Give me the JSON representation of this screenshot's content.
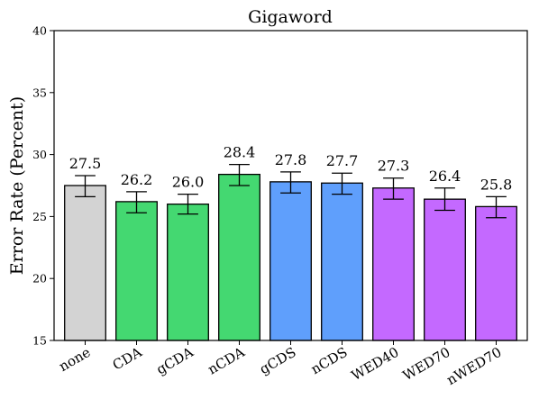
{
  "chart_data": {
    "type": "bar",
    "title": "Gigaword",
    "xlabel": "",
    "ylabel": "Error Rate (Percent)",
    "ylim": [
      15,
      40
    ],
    "yticks": [
      15,
      20,
      25,
      30,
      35,
      40
    ],
    "categories": [
      "none",
      "CDA",
      "gCDA",
      "nCDA",
      "gCDS",
      "nCDS",
      "WED40",
      "WED70",
      "nWED70"
    ],
    "values": [
      27.5,
      26.2,
      26.0,
      28.4,
      27.8,
      27.7,
      27.3,
      26.4,
      25.8
    ],
    "value_labels": [
      "27.5",
      "26.2",
      "26.0",
      "28.4",
      "27.8",
      "27.7",
      "27.3",
      "26.4",
      "25.8"
    ],
    "error_low": [
      26.6,
      25.3,
      25.2,
      27.5,
      26.9,
      26.8,
      26.4,
      25.5,
      24.9
    ],
    "error_high": [
      28.3,
      27.0,
      26.8,
      29.2,
      28.6,
      28.5,
      28.1,
      27.3,
      26.6
    ],
    "colors": [
      "#d3d3d3",
      "#44d871",
      "#44d871",
      "#44d871",
      "#5f9ffc",
      "#5f9ffc",
      "#c469ff",
      "#c469ff",
      "#c469ff"
    ],
    "grid": false,
    "legend": "none"
  }
}
